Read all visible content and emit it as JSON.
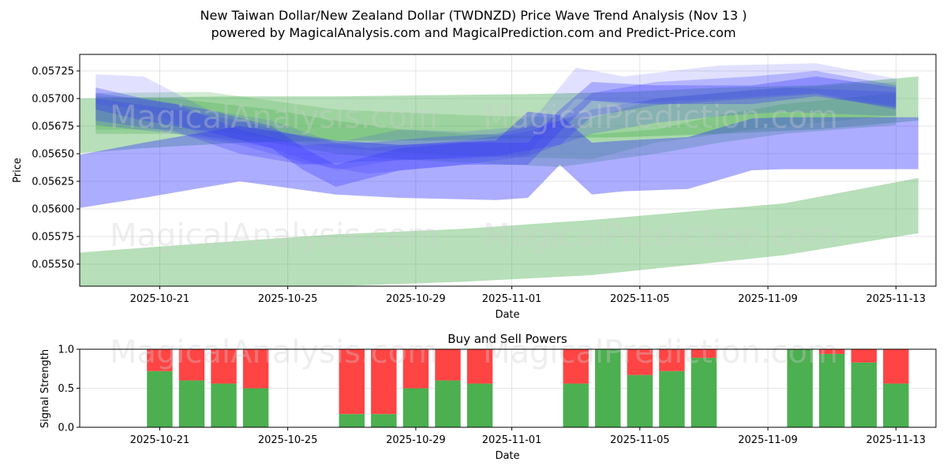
{
  "titles": {
    "line1": "New Taiwan Dollar/New Zealand Dollar (TWDNZD) Price Wave Trend Analysis (Nov 13 )",
    "line2": "powered by MagicalAnalysis.com and MagicalPrediction.com and Predict-Price.com"
  },
  "watermarks": [
    "MagicalAnalysis.com",
    "MagicalPrediction.com"
  ],
  "colors": {
    "green_band": "#4caf50",
    "blue_band": "#3333ff",
    "buy": "#4caf50",
    "sell": "#ff4444",
    "grid": "#dddddd"
  },
  "chart_data": [
    {
      "type": "area",
      "title": "New Taiwan Dollar/New Zealand Dollar (TWDNZD) Price Wave Trend Analysis (Nov 13 )",
      "xlabel": "Date",
      "ylabel": "Price",
      "xlim": [
        "2025-10-18T12",
        "2025-11-14T06"
      ],
      "ylim": [
        0.0553,
        0.0574
      ],
      "x_ticks": [
        "2025-10-21",
        "2025-10-25",
        "2025-10-29",
        "2025-11-01",
        "2025-11-05",
        "2025-11-09",
        "2025-11-13"
      ],
      "y_ticks": [
        "0.05550",
        "0.05575",
        "0.05600",
        "0.05625",
        "0.05650",
        "0.05675",
        "0.05700",
        "0.05725"
      ],
      "grid": true,
      "series": [
        {
          "name": "green-wide-upper",
          "color": "green",
          "opacity": 0.4,
          "x": [
            -0.2,
            2,
            5,
            8,
            11,
            14,
            17,
            20,
            23,
            26.2
          ],
          "upper": [
            0.057,
            0.05701,
            0.05702,
            0.05702,
            0.05703,
            0.05704,
            0.05706,
            0.0571,
            0.05712,
            0.0572
          ],
          "lower": [
            0.0565,
            0.05655,
            0.0566,
            0.05662,
            0.05662,
            0.05664,
            0.05665,
            0.05668,
            0.05672,
            0.0568
          ]
        },
        {
          "name": "green-low-trend",
          "color": "green",
          "opacity": 0.4,
          "x": [
            -0.2,
            3,
            8,
            12,
            16,
            20,
            22,
            26.2
          ],
          "upper": [
            0.0556,
            0.05567,
            0.05577,
            0.05582,
            0.0559,
            0.056,
            0.05605,
            0.05628
          ],
          "lower": [
            0.0553,
            0.0553,
            0.0553,
            0.05534,
            0.0554,
            0.05552,
            0.05558,
            0.05578
          ]
        },
        {
          "name": "green-mid-1",
          "color": "green",
          "opacity": 0.3,
          "x": [
            0.5,
            3,
            6,
            8,
            10,
            12,
            15,
            18,
            20,
            22,
            25.5
          ],
          "upper": [
            0.05702,
            0.057,
            0.0569,
            0.0568,
            0.05672,
            0.05668,
            0.05665,
            0.05672,
            0.05685,
            0.05695,
            0.05705
          ],
          "lower": [
            0.05668,
            0.05668,
            0.0566,
            0.0565,
            0.05645,
            0.05642,
            0.05638,
            0.0565,
            0.0566,
            0.05668,
            0.05676
          ]
        },
        {
          "name": "green-mid-2",
          "color": "green",
          "opacity": 0.25,
          "x": [
            0.5,
            4,
            8,
            12,
            16,
            18,
            21,
            25.5
          ],
          "upper": [
            0.05705,
            0.05706,
            0.0569,
            0.05685,
            0.05682,
            0.057,
            0.05708,
            0.05715
          ],
          "lower": [
            0.05672,
            0.05672,
            0.05655,
            0.05648,
            0.05645,
            0.0566,
            0.05672,
            0.05685
          ]
        },
        {
          "name": "blue-wide-lower",
          "color": "blue",
          "opacity": 0.4,
          "x": [
            -0.2,
            2,
            5,
            8,
            10,
            13,
            14,
            15,
            16,
            17,
            19,
            21,
            22,
            26.2
          ],
          "upper": [
            0.05648,
            0.0566,
            0.05675,
            0.05662,
            0.05658,
            0.05662,
            0.05688,
            0.05685,
            0.0566,
            0.05662,
            0.05665,
            0.05682,
            0.05683,
            0.05683
          ],
          "lower": [
            0.056,
            0.0561,
            0.05625,
            0.05613,
            0.0561,
            0.05608,
            0.0561,
            0.0564,
            0.05613,
            0.05616,
            0.05618,
            0.05635,
            0.05636,
            0.05636
          ]
        },
        {
          "name": "blue-wave-1",
          "color": "blue",
          "opacity": 0.3,
          "x": [
            0.5,
            2,
            4,
            6,
            7,
            8,
            10,
            12,
            14,
            15,
            16,
            18,
            21,
            23,
            25.5
          ],
          "upper": [
            0.0571,
            0.057,
            0.0569,
            0.05675,
            0.05655,
            0.0564,
            0.05655,
            0.0566,
            0.0566,
            0.0569,
            0.05715,
            0.05712,
            0.05712,
            0.0572,
            0.0571
          ],
          "lower": [
            0.0569,
            0.0568,
            0.0567,
            0.05655,
            0.05635,
            0.0562,
            0.05635,
            0.0564,
            0.0564,
            0.0567,
            0.05698,
            0.05695,
            0.05695,
            0.05702,
            0.05692
          ]
        },
        {
          "name": "blue-wave-2",
          "color": "blue",
          "opacity": 0.25,
          "x": [
            0.5,
            3,
            5,
            7,
            9,
            11,
            13,
            15,
            16,
            18,
            21,
            23,
            25.5
          ],
          "upper": [
            0.05705,
            0.05695,
            0.05672,
            0.05658,
            0.0566,
            0.05665,
            0.05668,
            0.0568,
            0.05705,
            0.05715,
            0.0572,
            0.05725,
            0.05712
          ],
          "lower": [
            0.0568,
            0.0567,
            0.0565,
            0.0564,
            0.05643,
            0.05645,
            0.05648,
            0.05658,
            0.05684,
            0.05694,
            0.057,
            0.05704,
            0.0569
          ]
        },
        {
          "name": "blue-wave-3",
          "color": "blue",
          "opacity": 0.15,
          "x": [
            0.5,
            2,
            4,
            6,
            8,
            10,
            12,
            14,
            15.5,
            17,
            20,
            23,
            25.5
          ],
          "upper": [
            0.05722,
            0.0572,
            0.0569,
            0.0568,
            0.0566,
            0.05672,
            0.0567,
            0.05675,
            0.05728,
            0.0572,
            0.0573,
            0.05732,
            0.05718
          ],
          "lower": [
            0.05695,
            0.0569,
            0.05665,
            0.05655,
            0.05635,
            0.05645,
            0.05645,
            0.0565,
            0.057,
            0.05695,
            0.057,
            0.05705,
            0.05693
          ]
        },
        {
          "name": "blue-wave-4",
          "color": "blue",
          "opacity": 0.2,
          "x": [
            0.5,
            3,
            5,
            7,
            9,
            12,
            14,
            16,
            18,
            20,
            22,
            25.5
          ],
          "upper": [
            0.057,
            0.0569,
            0.0568,
            0.05665,
            0.05655,
            0.05662,
            0.0567,
            0.0569,
            0.057,
            0.05705,
            0.0571,
            0.05706
          ],
          "lower": [
            0.05676,
            0.05668,
            0.05658,
            0.05642,
            0.05632,
            0.0564,
            0.05648,
            0.05668,
            0.05678,
            0.05684,
            0.05688,
            0.05684
          ]
        }
      ]
    },
    {
      "type": "bar",
      "title": "Buy and Sell Powers",
      "xlabel": "Date",
      "ylabel": "Signal Strength",
      "xlim": [
        "2025-10-18T12",
        "2025-11-14T06"
      ],
      "ylim": [
        0,
        1
      ],
      "x_ticks": [
        "2025-10-21",
        "2025-10-25",
        "2025-10-29",
        "2025-11-01",
        "2025-11-05",
        "2025-11-09",
        "2025-11-13"
      ],
      "y_ticks": [
        "0.0",
        "0.5",
        "1.0"
      ],
      "grid": true,
      "categories": [
        "2025-10-21",
        "2025-10-22",
        "2025-10-23",
        "2025-10-24",
        "2025-10-27",
        "2025-10-28",
        "2025-10-29",
        "2025-10-30",
        "2025-10-31",
        "2025-11-03",
        "2025-11-04",
        "2025-11-05",
        "2025-11-06",
        "2025-11-07",
        "2025-11-10",
        "2025-11-11",
        "2025-11-12",
        "2025-11-13"
      ],
      "series": [
        {
          "name": "Buy",
          "values": [
            0.72,
            0.6,
            0.56,
            0.5,
            0.17,
            0.17,
            0.5,
            0.6,
            0.56,
            0.56,
            1.0,
            0.67,
            0.72,
            0.89,
            1.0,
            0.94,
            0.83,
            0.56
          ]
        },
        {
          "name": "Sell",
          "values": [
            0.28,
            0.4,
            0.44,
            0.5,
            0.83,
            0.83,
            0.5,
            0.4,
            0.44,
            0.44,
            0.0,
            0.33,
            0.28,
            0.11,
            0.0,
            0.06,
            0.17,
            0.44
          ]
        }
      ]
    }
  ]
}
